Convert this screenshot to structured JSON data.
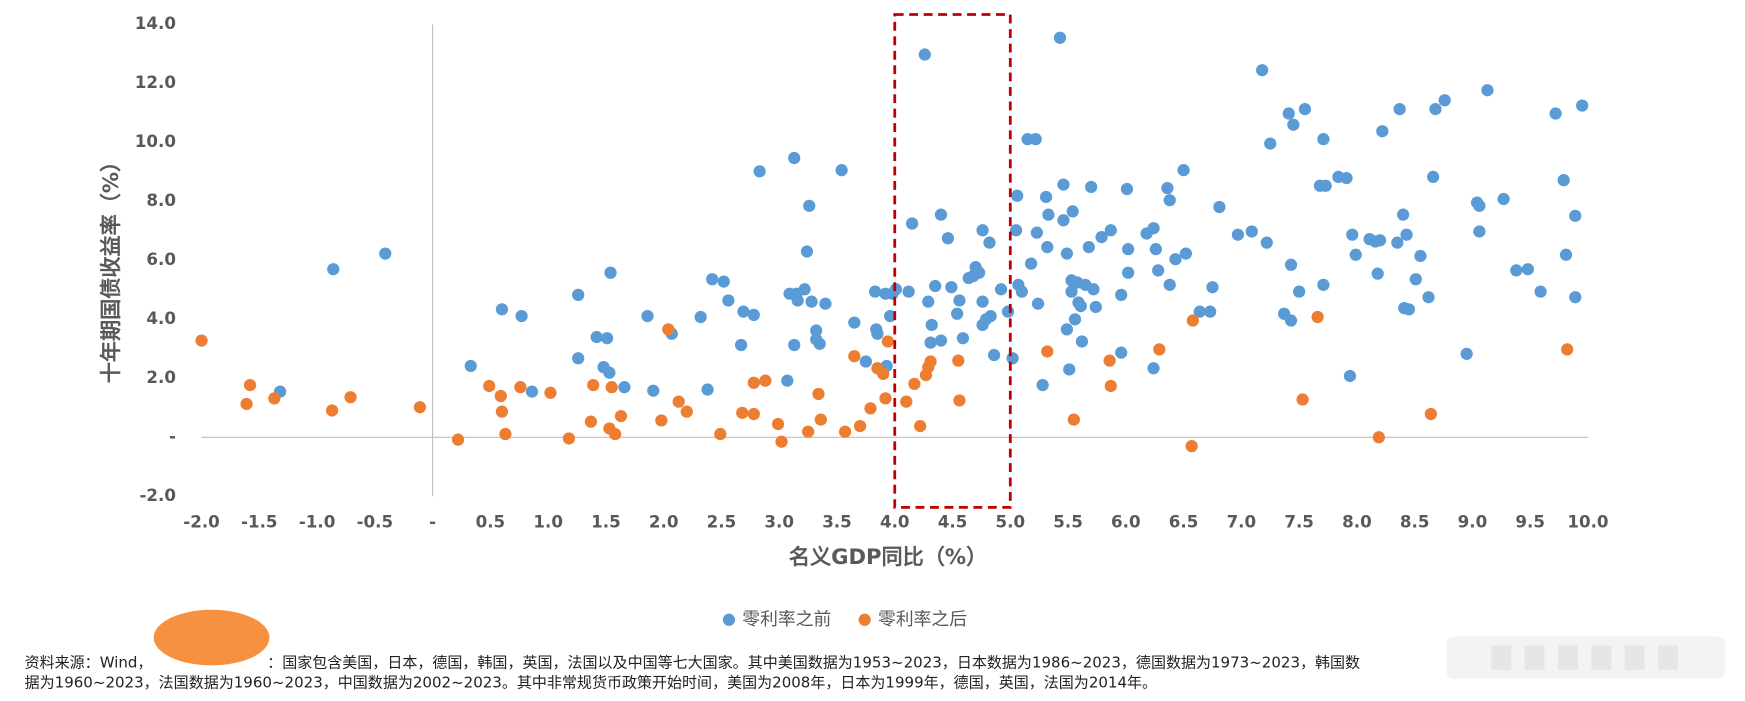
{
  "chart_data": {
    "type": "scatter",
    "x_label": "名义GDP同比（%）",
    "y_label": "十年期国债收益率（%）",
    "xlim": [
      -2,
      10
    ],
    "ylim": [
      -2,
      14
    ],
    "xticks": [
      {
        "value": -2,
        "label": "-2.0"
      },
      -1.5,
      {
        "value": -1,
        "label": "-1.0"
      },
      -0.5,
      {
        "value": 0,
        "label": "-"
      },
      0.5,
      {
        "value": 1,
        "label": "1.0"
      },
      1.5,
      {
        "value": 2,
        "label": "2.0"
      },
      2.5,
      {
        "value": 3,
        "label": "3.0"
      },
      3.5,
      {
        "value": 4,
        "label": "4.0"
      },
      4.5,
      {
        "value": 5,
        "label": "5.0"
      },
      5.5,
      {
        "value": 6,
        "label": "6.0"
      },
      6.5,
      {
        "value": 7,
        "label": "7.0"
      },
      7.5,
      {
        "value": 8,
        "label": "8.0"
      },
      8.5,
      {
        "value": 9,
        "label": "9.0"
      },
      9.5,
      {
        "value": 10,
        "label": "10.0"
      }
    ],
    "yticks": [
      {
        "value": -2,
        "label": "-2.0"
      },
      {
        "value": 0,
        "label": "-"
      },
      {
        "value": 2,
        "label": "2.0"
      },
      {
        "value": 4,
        "label": "4.0"
      },
      {
        "value": 6,
        "label": "6.0"
      },
      {
        "value": 8,
        "label": "8.0"
      },
      {
        "value": 10,
        "label": "10.0"
      },
      {
        "value": 12,
        "label": "12.0"
      },
      {
        "value": 14,
        "label": "14.0"
      }
    ],
    "grid": false,
    "legend": "bottom",
    "highlight_x": [
      4,
      5
    ],
    "highlight_color": "#c00000",
    "series": [
      {
        "name": "零利率之前",
        "color": "#5b9bd5",
        "x": [
          -1.32,
          -0.86,
          -0.41,
          0.33,
          0.6,
          0.77,
          0.86,
          1.26,
          1.26,
          1.42,
          1.51,
          1.48,
          1.53,
          1.54,
          1.66,
          1.86,
          1.91,
          2.07,
          2.32,
          2.38,
          2.42,
          2.52,
          2.56,
          2.67,
          2.69,
          2.78,
          2.83,
          3.07,
          3.09,
          3.13,
          3.13,
          3.15,
          3.16,
          3.22,
          3.24,
          3.26,
          3.28,
          3.32,
          3.32,
          3.35,
          3.4,
          3.54,
          3.65,
          3.75,
          3.83,
          3.84,
          3.85,
          3.92,
          3.93,
          3.96,
          3.98,
          4.01,
          4.12,
          4.15,
          4.26,
          4.29,
          4.32,
          4.35,
          4.31,
          4.4,
          4.4,
          4.46,
          4.49,
          4.54,
          4.56,
          4.59,
          4.64,
          4.68,
          4.7,
          4.73,
          4.76,
          4.76,
          4.76,
          4.79,
          4.82,
          4.83,
          4.86,
          4.92,
          4.98,
          5.02,
          5.05,
          5.06,
          5.07,
          5.1,
          5.15,
          5.18,
          5.22,
          5.23,
          5.24,
          5.28,
          5.31,
          5.33,
          5.32,
          5.43,
          5.46,
          5.46,
          5.49,
          5.49,
          5.51,
          5.53,
          5.53,
          5.54,
          5.56,
          5.58,
          5.59,
          5.61,
          5.62,
          5.65,
          5.68,
          5.7,
          5.72,
          5.74,
          5.79,
          5.87,
          5.96,
          5.96,
          6.01,
          6.02,
          6.02,
          6.18,
          6.24,
          6.26,
          6.24,
          6.28,
          6.36,
          6.38,
          6.38,
          6.43,
          6.5,
          6.52,
          6.64,
          6.73,
          6.75,
          6.81,
          6.97,
          7.09,
          7.18,
          7.22,
          7.25,
          7.37,
          7.41,
          7.43,
          7.45,
          7.43,
          7.5,
          7.55,
          7.68,
          7.71,
          7.73,
          7.71,
          7.84,
          7.91,
          7.94,
          7.96,
          7.99,
          8.11,
          8.16,
          8.18,
          8.2,
          8.22,
          8.35,
          8.37,
          8.4,
          8.41,
          8.43,
          8.45,
          8.51,
          8.55,
          8.62,
          8.66,
          8.68,
          8.76,
          8.95,
          9.04,
          9.06,
          9.06,
          9.13,
          9.27,
          9.38,
          9.48,
          9.59,
          9.72,
          9.79,
          9.81,
          9.89,
          9.89,
          9.95
        ],
        "values": [
          1.55,
          5.7,
          6.23,
          2.42,
          4.34,
          4.11,
          1.55,
          2.68,
          4.83,
          3.4,
          3.36,
          2.38,
          2.19,
          5.58,
          1.7,
          4.11,
          1.58,
          3.51,
          4.08,
          1.62,
          5.36,
          5.28,
          4.64,
          3.13,
          4.26,
          4.15,
          9.02,
          1.92,
          4.87,
          9.47,
          3.13,
          4.87,
          4.64,
          5.02,
          6.3,
          7.85,
          4.6,
          3.62,
          3.32,
          3.17,
          4.53,
          9.06,
          3.89,
          2.57,
          4.94,
          3.66,
          3.51,
          4.87,
          2.42,
          4.11,
          4.87,
          5.02,
          4.94,
          7.25,
          12.98,
          4.6,
          3.81,
          5.13,
          3.21,
          7.55,
          3.28,
          6.75,
          5.09,
          4.19,
          4.64,
          3.36,
          5.4,
          5.47,
          5.77,
          5.58,
          4.6,
          7.02,
          3.81,
          4.0,
          6.6,
          4.11,
          2.79,
          5.02,
          4.26,
          2.68,
          7.02,
          8.19,
          5.17,
          4.94,
          10.11,
          5.89,
          10.11,
          6.94,
          4.53,
          1.77,
          8.15,
          7.55,
          6.45,
          13.55,
          8.57,
          7.36,
          6.23,
          3.66,
          2.3,
          5.32,
          4.94,
          7.66,
          4.0,
          5.25,
          4.57,
          4.45,
          3.25,
          5.17,
          6.45,
          8.49,
          5.02,
          4.42,
          6.79,
          7.02,
          4.83,
          2.87,
          8.42,
          5.58,
          6.38,
          6.91,
          7.09,
          6.38,
          2.34,
          5.66,
          8.45,
          8.04,
          5.17,
          6.04,
          9.06,
          6.23,
          4.26,
          4.26,
          5.09,
          7.81,
          6.87,
          6.98,
          12.45,
          6.6,
          9.96,
          4.19,
          10.98,
          5.85,
          10.6,
          3.96,
          4.94,
          11.13,
          8.53,
          10.11,
          8.53,
          5.17,
          8.83,
          8.79,
          2.08,
          6.87,
          6.19,
          6.72,
          6.64,
          5.55,
          6.68,
          10.38,
          6.6,
          11.13,
          7.55,
          4.38,
          6.87,
          4.34,
          5.36,
          6.15,
          4.75,
          8.83,
          11.13,
          11.43,
          2.83,
          7.96,
          7.85,
          6.98,
          11.77,
          8.08,
          5.66,
          5.7,
          4.94,
          10.98,
          8.72,
          6.19,
          7.51,
          4.75,
          11.25
        ]
      },
      {
        "name": "零利率之后",
        "color": "#ed7d31",
        "x": [
          -2.0,
          -1.61,
          -1.58,
          -1.37,
          -0.87,
          -0.71,
          -0.11,
          0.22,
          0.49,
          0.59,
          0.6,
          0.63,
          0.76,
          1.02,
          1.18,
          1.37,
          1.39,
          1.53,
          1.55,
          1.58,
          1.63,
          1.98,
          2.04,
          2.13,
          2.2,
          2.49,
          2.68,
          2.78,
          2.78,
          2.88,
          2.99,
          3.02,
          3.25,
          3.34,
          3.36,
          3.57,
          3.65,
          3.7,
          3.79,
          3.85,
          3.9,
          3.92,
          3.94,
          4.1,
          4.17,
          4.22,
          4.27,
          4.29,
          4.31,
          4.55,
          4.56,
          5.32,
          5.55,
          5.86,
          5.87,
          6.29,
          6.58,
          6.57,
          7.53,
          7.66,
          8.19,
          8.64,
          9.82
        ],
        "values": [
          3.28,
          1.13,
          1.77,
          1.32,
          0.91,
          1.36,
          1.02,
          -0.08,
          1.74,
          1.4,
          0.87,
          0.11,
          1.7,
          1.51,
          -0.04,
          0.53,
          1.77,
          0.3,
          1.7,
          0.11,
          0.72,
          0.57,
          3.66,
          1.21,
          0.87,
          0.11,
          0.83,
          1.85,
          0.79,
          1.92,
          0.45,
          -0.15,
          0.19,
          1.47,
          0.6,
          0.19,
          2.75,
          0.38,
          0.98,
          2.34,
          2.15,
          1.32,
          3.25,
          1.21,
          1.81,
          0.38,
          2.11,
          2.38,
          2.57,
          2.6,
          1.25,
          2.91,
          0.6,
          2.6,
          1.74,
          2.98,
          3.96,
          -0.3,
          1.28,
          4.08,
          0,
          0.79,
          2.98
        ]
      }
    ],
    "note": [
      "资料来源：Wind，",
      "：国家包含美国，日本，德国，韩国，英国，法国以及中国等七大国家。其中美国数据为1953~2023，日本数据为1986~2023，德国数据为1973~2023，韩国数",
      "据为1960~2023，法国数据为1960~2023，中国数据为2002~2023。其中非常规货币政策开始时间，美国为2008年，日本为1999年，德国，英国，法国为2014年。"
    ]
  }
}
